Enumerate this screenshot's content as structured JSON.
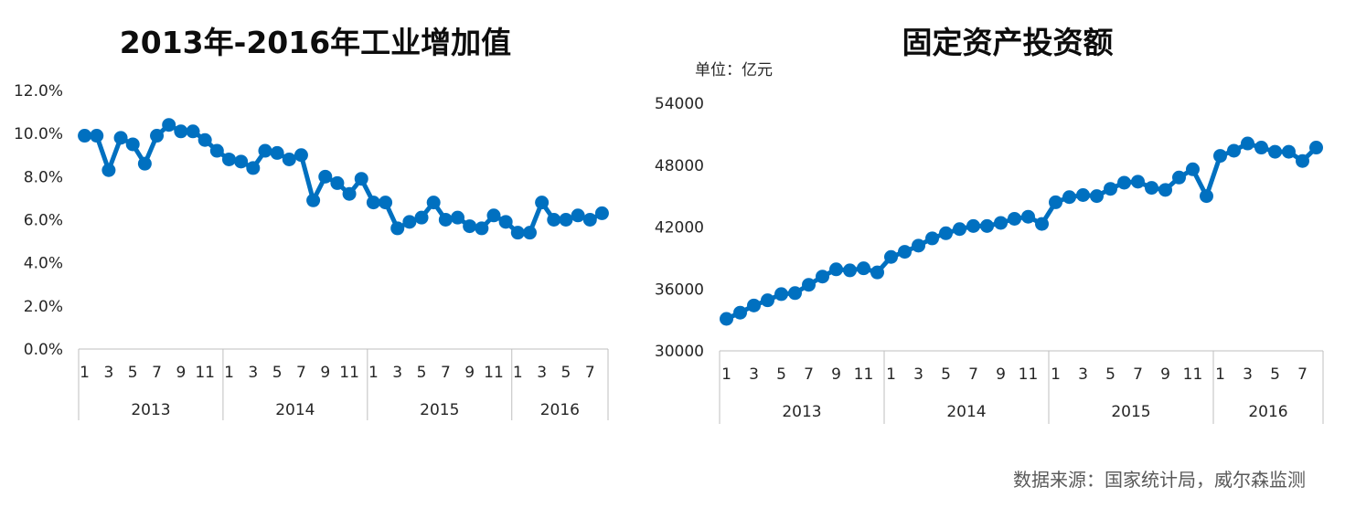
{
  "source_note": "数据来源：国家统计局，威尔森监测",
  "chart_data": [
    {
      "type": "line",
      "title": "2013年-2016年工业增加值",
      "ylabel": "",
      "xlabel": "",
      "ylim": [
        0,
        12
      ],
      "yticks": [
        0,
        2,
        4,
        6,
        8,
        10,
        12
      ],
      "ytick_labels": [
        "0.0%",
        "2.0%",
        "4.0%",
        "6.0%",
        "8.0%",
        "10.0%",
        "12.0%"
      ],
      "grid": false,
      "color": "#0070C0",
      "groups": [
        {
          "label": "2013",
          "months": [
            1,
            2,
            3,
            4,
            5,
            6,
            7,
            8,
            9,
            10,
            11,
            12
          ]
        },
        {
          "label": "2014",
          "months": [
            1,
            2,
            3,
            4,
            5,
            6,
            7,
            8,
            9,
            10,
            11,
            12
          ]
        },
        {
          "label": "2015",
          "months": [
            1,
            2,
            3,
            4,
            5,
            6,
            7,
            8,
            9,
            10,
            11,
            12
          ]
        },
        {
          "label": "2016",
          "months": [
            1,
            2,
            3,
            4,
            5,
            6,
            7,
            8
          ]
        }
      ],
      "x_tick_labels": [
        "1",
        "3",
        "5",
        "7",
        "9",
        "11",
        "1",
        "3",
        "5",
        "7",
        "9",
        "11",
        "1",
        "3",
        "5",
        "7",
        "9",
        "11",
        "1",
        "3",
        "5",
        "7"
      ],
      "values": [
        9.9,
        9.9,
        8.3,
        9.8,
        9.5,
        8.6,
        9.9,
        10.4,
        10.1,
        10.1,
        9.7,
        9.2,
        8.8,
        8.7,
        8.4,
        9.2,
        9.1,
        8.8,
        9.0,
        6.9,
        8.0,
        7.7,
        7.2,
        7.9,
        6.8,
        6.8,
        5.6,
        5.9,
        6.1,
        6.8,
        6.0,
        6.1,
        5.7,
        5.6,
        6.2,
        5.9,
        5.4,
        5.4,
        6.8,
        6.0,
        6.0,
        6.2,
        6.0,
        6.3
      ]
    },
    {
      "type": "line",
      "title": "固定资产投资额",
      "unit_label": "单位：亿元",
      "ylabel": "",
      "xlabel": "",
      "ylim": [
        30000,
        54000
      ],
      "yticks": [
        30000,
        36000,
        42000,
        48000,
        54000
      ],
      "ytick_labels": [
        "30000",
        "36000",
        "42000",
        "48000",
        "54000"
      ],
      "grid": false,
      "color": "#0070C0",
      "groups": [
        {
          "label": "2013",
          "months": [
            1,
            2,
            3,
            4,
            5,
            6,
            7,
            8,
            9,
            10,
            11,
            12
          ]
        },
        {
          "label": "2014",
          "months": [
            1,
            2,
            3,
            4,
            5,
            6,
            7,
            8,
            9,
            10,
            11,
            12
          ]
        },
        {
          "label": "2015",
          "months": [
            1,
            2,
            3,
            4,
            5,
            6,
            7,
            8,
            9,
            10,
            11,
            12
          ]
        },
        {
          "label": "2016",
          "months": [
            1,
            2,
            3,
            4,
            5,
            6,
            7,
            8
          ]
        }
      ],
      "x_tick_labels": [
        "1",
        "3",
        "5",
        "7",
        "9",
        "11",
        "1",
        "3",
        "5",
        "7",
        "9",
        "11",
        "1",
        "3",
        "5",
        "7",
        "9",
        "11",
        "1",
        "3",
        "5",
        "7"
      ],
      "values": [
        33100,
        33700,
        34400,
        34900,
        35500,
        35600,
        36400,
        37200,
        37900,
        37800,
        38000,
        37600,
        39100,
        39600,
        40200,
        40900,
        41400,
        41800,
        42100,
        42100,
        42400,
        42800,
        43000,
        42300,
        44400,
        44900,
        45100,
        45000,
        45700,
        46300,
        46400,
        45800,
        45600,
        46800,
        47600,
        45000,
        48900,
        49400,
        50100,
        49700,
        49300,
        49300,
        48400,
        49700
      ]
    }
  ]
}
